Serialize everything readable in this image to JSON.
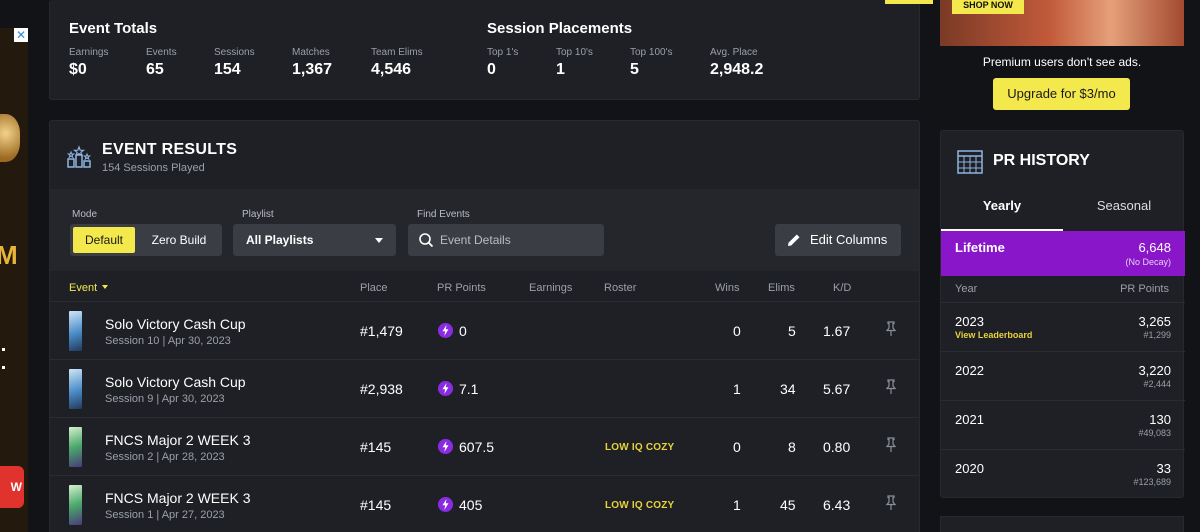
{
  "event_totals": {
    "title": "Event Totals",
    "stats": [
      {
        "label": "Earnings",
        "value": "$0"
      },
      {
        "label": "Events",
        "value": "65"
      },
      {
        "label": "Sessions",
        "value": "154"
      },
      {
        "label": "Matches",
        "value": "1,367"
      },
      {
        "label": "Team Elims",
        "value": "4,546"
      }
    ]
  },
  "session_placements": {
    "title": "Session Placements",
    "stats": [
      {
        "label": "Top 1's",
        "value": "0"
      },
      {
        "label": "Top 10's",
        "value": "1"
      },
      {
        "label": "Top 100's",
        "value": "5"
      },
      {
        "label": "Avg. Place",
        "value": "2,948.2"
      }
    ]
  },
  "event_results": {
    "title": "EVENT RESULTS",
    "subtitle": "154 Sessions Played",
    "filters": {
      "mode_label": "Mode",
      "mode_options": [
        "Default",
        "Zero Build"
      ],
      "playlist_label": "Playlist",
      "playlist_value": "All Playlists",
      "find_label": "Find Events",
      "search_placeholder": "Event Details",
      "edit_columns": "Edit Columns"
    },
    "columns": {
      "event": "Event",
      "place": "Place",
      "pr_points": "PR Points",
      "earnings": "Earnings",
      "roster": "Roster",
      "wins": "Wins",
      "elims": "Elims",
      "kd": "K/D"
    },
    "rows": [
      {
        "name": "Solo Victory Cash Cup",
        "session": "Session 10",
        "date": "Apr 30, 2023",
        "place": "#1,479",
        "pr": "0",
        "roster": "",
        "wins": "0",
        "elims": "5",
        "kd": "1.67"
      },
      {
        "name": "Solo Victory Cash Cup",
        "session": "Session 9",
        "date": "Apr 30, 2023",
        "place": "#2,938",
        "pr": "7.1",
        "roster": "",
        "wins": "1",
        "elims": "34",
        "kd": "5.67"
      },
      {
        "name": "FNCS Major 2 WEEK 3",
        "session": "Session 2",
        "date": "Apr 28, 2023",
        "place": "#145",
        "pr": "607.5",
        "roster": "LOW IQ COZY",
        "wins": "0",
        "elims": "8",
        "kd": "0.80"
      },
      {
        "name": "FNCS Major 2 WEEK 3",
        "session": "Session 1",
        "date": "Apr 27, 2023",
        "place": "#145",
        "pr": "405",
        "roster": "LOW IQ COZY",
        "wins": "1",
        "elims": "45",
        "kd": "6.43"
      }
    ]
  },
  "ad": {
    "shop_label": "SHOP NOW",
    "premium_text": "Premium users don't see ads.",
    "upgrade_label": "Upgrade for $3/mo",
    "left_letter": "M",
    "left_button": "W"
  },
  "pr_history": {
    "title": "PR HISTORY",
    "tabs": [
      "Yearly",
      "Seasonal"
    ],
    "lifetime": {
      "label": "Lifetime",
      "value": "6,648",
      "sub": "(No Decay)"
    },
    "col_year": "Year",
    "col_points": "PR Points",
    "rows": [
      {
        "year": "2023",
        "link": "View Leaderboard",
        "points": "3,265",
        "rank": "#1,299"
      },
      {
        "year": "2022",
        "link": "",
        "points": "3,220",
        "rank": "#2,444"
      },
      {
        "year": "2021",
        "link": "",
        "points": "130",
        "rank": "#49,083"
      },
      {
        "year": "2020",
        "link": "",
        "points": "33",
        "rank": "#123,689"
      }
    ]
  }
}
